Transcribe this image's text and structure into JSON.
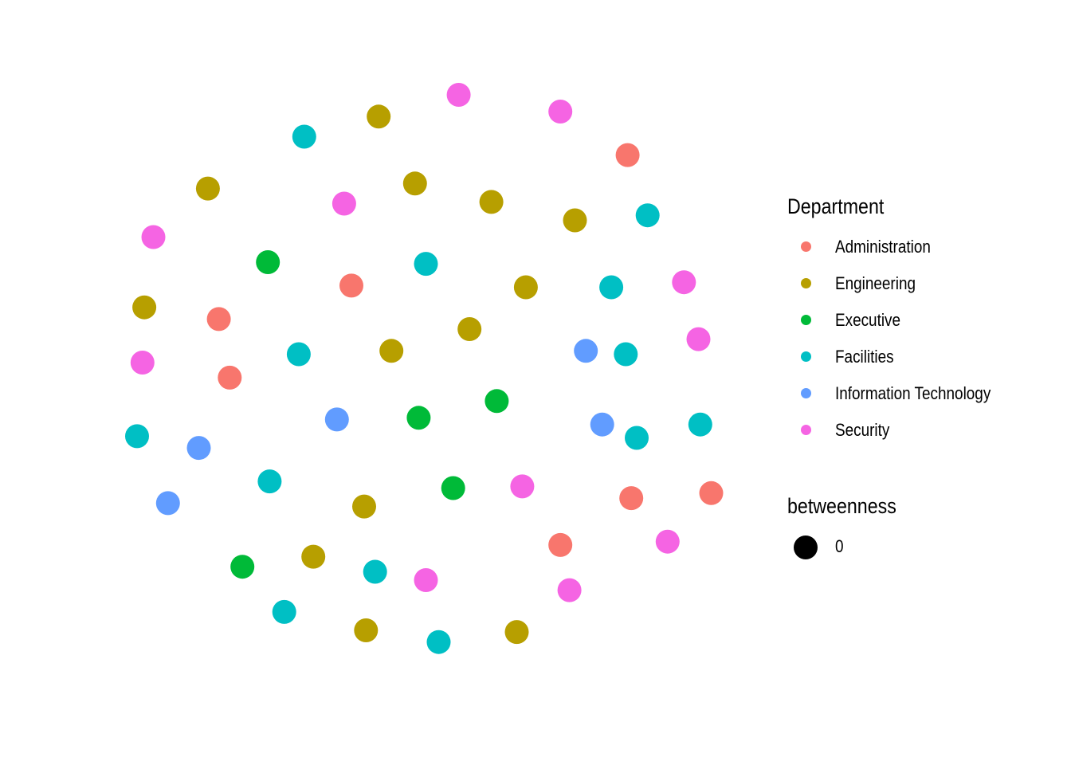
{
  "chart_data": {
    "type": "scatter",
    "title": "",
    "xlabel": "",
    "ylabel": "",
    "grid": false,
    "axes": false,
    "legend_position": "right",
    "xlim": [
      -1.8,
      1.7
    ],
    "ylim": [
      -1.8,
      1.8
    ],
    "color_legend": {
      "title": "Department",
      "entries": [
        {
          "name": "Administration",
          "color": "#F8766D"
        },
        {
          "name": "Engineering",
          "color": "#B79F00"
        },
        {
          "name": "Executive",
          "color": "#00BA38"
        },
        {
          "name": "Facilities",
          "color": "#00BFC4"
        },
        {
          "name": "Information Technology",
          "color": "#619CFF"
        },
        {
          "name": "Security",
          "color": "#F564E3"
        }
      ]
    },
    "size_legend": {
      "title": "betweenness",
      "entries": [
        {
          "label": "0"
        }
      ]
    },
    "series": [
      {
        "name": "Administration",
        "points": [
          {
            "x": 1.2,
            "y": 1.34
          },
          {
            "x": -0.32,
            "y": 0.56
          },
          {
            "x": -1.05,
            "y": 0.36
          },
          {
            "x": -0.99,
            "y": 0.01
          },
          {
            "x": 1.22,
            "y": -0.71
          },
          {
            "x": 1.66,
            "y": -0.68
          },
          {
            "x": 0.83,
            "y": -0.99
          }
        ]
      },
      {
        "name": "Engineering",
        "points": [
          {
            "x": -0.17,
            "y": 1.57
          },
          {
            "x": -1.11,
            "y": 1.14
          },
          {
            "x": 0.03,
            "y": 1.17
          },
          {
            "x": 0.45,
            "y": 1.06
          },
          {
            "x": 0.91,
            "y": 0.95
          },
          {
            "x": 0.64,
            "y": 0.55
          },
          {
            "x": -1.46,
            "y": 0.43
          },
          {
            "x": 0.33,
            "y": 0.3
          },
          {
            "x": -0.1,
            "y": 0.17
          },
          {
            "x": -0.25,
            "y": -0.76
          },
          {
            "x": -0.53,
            "y": -1.06
          },
          {
            "x": -0.24,
            "y": -1.5
          },
          {
            "x": 0.59,
            "y": -1.51
          }
        ]
      },
      {
        "name": "Executive",
        "points": [
          {
            "x": -0.78,
            "y": 0.7
          },
          {
            "x": 0.48,
            "y": -0.13
          },
          {
            "x": 0.05,
            "y": -0.23
          },
          {
            "x": 0.24,
            "y": -0.65
          },
          {
            "x": -0.92,
            "y": -1.12
          }
        ]
      },
      {
        "name": "Facilities",
        "points": [
          {
            "x": -0.58,
            "y": 1.45
          },
          {
            "x": 0.09,
            "y": 0.69
          },
          {
            "x": 1.31,
            "y": 0.98
          },
          {
            "x": 1.11,
            "y": 0.55
          },
          {
            "x": -0.61,
            "y": 0.15
          },
          {
            "x": 1.19,
            "y": 0.15
          },
          {
            "x": -1.5,
            "y": -0.34
          },
          {
            "x": 1.25,
            "y": -0.35
          },
          {
            "x": 1.6,
            "y": -0.27
          },
          {
            "x": -0.77,
            "y": -0.61
          },
          {
            "x": -0.19,
            "y": -1.15
          },
          {
            "x": -0.69,
            "y": -1.39
          },
          {
            "x": 0.16,
            "y": -1.57
          }
        ]
      },
      {
        "name": "Information Technology",
        "points": [
          {
            "x": 0.97,
            "y": 0.17
          },
          {
            "x": -0.4,
            "y": -0.24
          },
          {
            "x": 1.06,
            "y": -0.27
          },
          {
            "x": -1.16,
            "y": -0.41
          },
          {
            "x": -1.33,
            "y": -0.74
          }
        ]
      },
      {
        "name": "Security",
        "points": [
          {
            "x": 0.27,
            "y": 1.7
          },
          {
            "x": 0.83,
            "y": 1.6
          },
          {
            "x": -0.36,
            "y": 1.05
          },
          {
            "x": -1.41,
            "y": 0.85
          },
          {
            "x": 1.51,
            "y": 0.58
          },
          {
            "x": 1.59,
            "y": 0.24
          },
          {
            "x": -1.47,
            "y": 0.1
          },
          {
            "x": 0.62,
            "y": -0.64
          },
          {
            "x": 1.42,
            "y": -0.97
          },
          {
            "x": 0.09,
            "y": -1.2
          },
          {
            "x": 0.88,
            "y": -1.26
          }
        ]
      }
    ]
  }
}
